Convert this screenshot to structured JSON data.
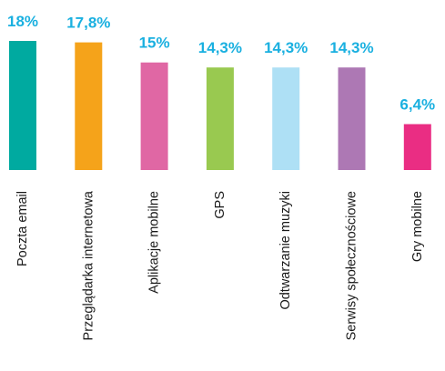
{
  "chart_data": {
    "type": "bar",
    "title": "",
    "xlabel": "",
    "ylabel": "",
    "ylim": [
      0,
      18
    ],
    "grid": false,
    "categories": [
      "Poczta email",
      "Przeglądarka internetowa",
      "Aplikacje mobilne",
      "GPS",
      "Odtwarzanie muzyki",
      "Serwisy społecznościowe",
      "Gry mobilne"
    ],
    "values": [
      18,
      17.8,
      15,
      14.3,
      14.3,
      14.3,
      6.4
    ],
    "data_labels": [
      "18%",
      "17,8%",
      "15%",
      "14,3%",
      "14,3%",
      "14,3%",
      "6,4%"
    ],
    "bar_colors": [
      "#00aaa0",
      "#f5a31a",
      "#e067a4",
      "#99c950",
      "#aee0f5",
      "#ad78b4",
      "#ea2d83"
    ],
    "label_color": "#1ab0e0"
  }
}
